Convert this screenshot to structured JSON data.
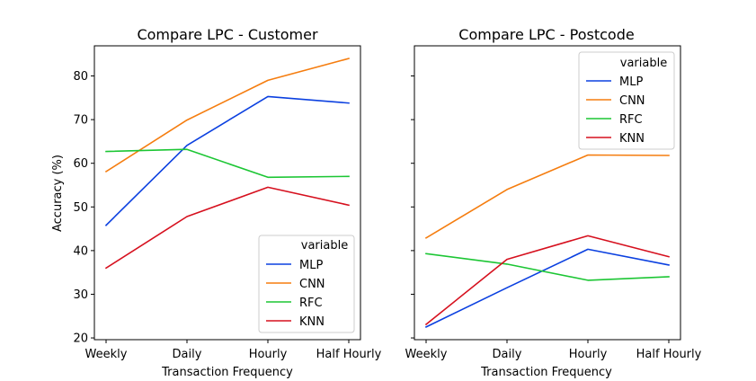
{
  "chart_data": [
    {
      "type": "line",
      "title": "Compare LPC - Customer",
      "xlabel": "Transaction Frequency",
      "ylabel": "Accuracy (%)",
      "categories": [
        "Weekly",
        "Daily",
        "Hourly",
        "Half Hourly"
      ],
      "ylim": [
        19.6,
        86.9
      ],
      "yticks": [
        20,
        30,
        40,
        50,
        60,
        70,
        80
      ],
      "legend": {
        "title": "variable",
        "placement": "lower-right"
      },
      "series": [
        {
          "name": "MLP",
          "color": "#0b40e0",
          "values": [
            45.8,
            64.1,
            75.3,
            73.8
          ]
        },
        {
          "name": "CNN",
          "color": "#f57d0f",
          "values": [
            58.1,
            69.9,
            79.0,
            84.0
          ]
        },
        {
          "name": "RFC",
          "color": "#1cc634",
          "values": [
            62.7,
            63.2,
            56.8,
            57.0
          ]
        },
        {
          "name": "KNN",
          "color": "#d6101e",
          "values": [
            36.0,
            47.8,
            54.5,
            50.4
          ]
        }
      ]
    },
    {
      "type": "line",
      "title": "Compare LPC - Postcode",
      "xlabel": "Transaction Frequency",
      "ylabel": "",
      "categories": [
        "Weekly",
        "Daily",
        "Hourly",
        "Half Hourly"
      ],
      "ylim": [
        19.6,
        86.9
      ],
      "yticks": [
        20,
        30,
        40,
        50,
        60,
        70,
        80
      ],
      "legend": {
        "title": "variable",
        "placement": "upper-right"
      },
      "series": [
        {
          "name": "MLP",
          "color": "#0b40e0",
          "values": [
            22.5,
            31.5,
            40.3,
            36.7
          ]
        },
        {
          "name": "CNN",
          "color": "#f57d0f",
          "values": [
            42.9,
            54.0,
            61.9,
            61.8
          ]
        },
        {
          "name": "RFC",
          "color": "#1cc634",
          "values": [
            39.3,
            36.9,
            33.2,
            34.0
          ]
        },
        {
          "name": "KNN",
          "color": "#d6101e",
          "values": [
            23.1,
            38.0,
            43.4,
            38.6
          ]
        }
      ]
    }
  ]
}
